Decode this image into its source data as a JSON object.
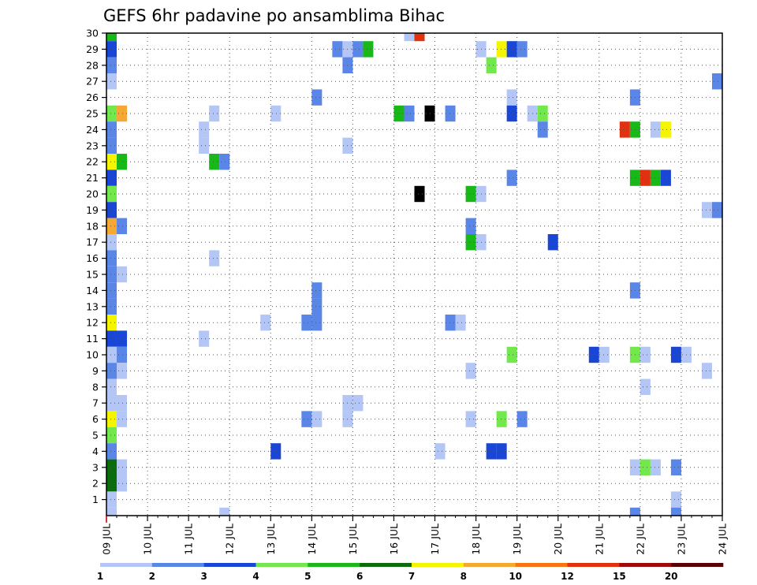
{
  "chart_data": {
    "type": "heatmap",
    "title": "GEFS 6hr padavine po ansamblima Bihac",
    "x_tick_labels": [
      "09 JUL",
      "10 JUL",
      "11 JUL",
      "12 JUL",
      "13 JUL",
      "14 JUL",
      "15 JUL",
      "16 JUL",
      "17 JUL",
      "18 JUL",
      "19 JUL",
      "20 JUL",
      "21 JUL",
      "22 JUL",
      "23 JUL",
      "24 JUL"
    ],
    "y_tick_labels": [
      "1",
      "2",
      "3",
      "4",
      "5",
      "6",
      "7",
      "8",
      "9",
      "10",
      "11",
      "12",
      "13",
      "14",
      "15",
      "16",
      "17",
      "18",
      "19",
      "20",
      "21",
      "22",
      "23",
      "24",
      "25",
      "26",
      "27",
      "28",
      "29",
      "30"
    ],
    "xlim": [
      0,
      15
    ],
    "ylim": [
      0,
      30
    ],
    "grid": true,
    "colorbar": {
      "placement": "bottom",
      "labels": [
        "1",
        "2",
        "3",
        "4",
        "5",
        "6",
        "7",
        "8",
        "10",
        "12",
        "15",
        "20"
      ],
      "colors": [
        "#b3c6f5",
        "#5a86e8",
        "#1a46d6",
        "#72e84c",
        "#18b818",
        "#0c6b0c",
        "#f5f500",
        "#f5a833",
        "#f57514",
        "#e0320f",
        "#9c0c0c",
        "#5a0000"
      ]
    },
    "cells": [
      {
        "t": 0.125,
        "m": 30,
        "v": 5
      },
      {
        "t": 0.125,
        "m": 29,
        "v": 3
      },
      {
        "t": 0.125,
        "m": 28,
        "v": 2
      },
      {
        "t": 0.125,
        "m": 27,
        "v": 1
      },
      {
        "t": 0.125,
        "m": 25,
        "v": 4
      },
      {
        "t": 0.375,
        "m": 25,
        "v": 8
      },
      {
        "t": 0.125,
        "m": 24,
        "v": 2
      },
      {
        "t": 0.125,
        "m": 23,
        "v": 2
      },
      {
        "t": 0.125,
        "m": 22,
        "v": 7
      },
      {
        "t": 0.375,
        "m": 22,
        "v": 5
      },
      {
        "t": 0.125,
        "m": 21,
        "v": 3
      },
      {
        "t": 0.125,
        "m": 20,
        "v": 4
      },
      {
        "t": 0.125,
        "m": 19,
        "v": 3
      },
      {
        "t": 0.125,
        "m": 18,
        "v": 8
      },
      {
        "t": 0.375,
        "m": 18,
        "v": 2
      },
      {
        "t": 0.125,
        "m": 17,
        "v": 1
      },
      {
        "t": 0.125,
        "m": 16,
        "v": 2
      },
      {
        "t": 0.125,
        "m": 15,
        "v": 2
      },
      {
        "t": 0.375,
        "m": 15,
        "v": 1
      },
      {
        "t": 0.125,
        "m": 14,
        "v": 2
      },
      {
        "t": 0.125,
        "m": 13,
        "v": 2
      },
      {
        "t": 0.125,
        "m": 12,
        "v": 7
      },
      {
        "t": 0.125,
        "m": 11,
        "v": 3
      },
      {
        "t": 0.375,
        "m": 11,
        "v": 3
      },
      {
        "t": 0.125,
        "m": 10,
        "v": 1
      },
      {
        "t": 0.375,
        "m": 10,
        "v": 2
      },
      {
        "t": 0.125,
        "m": 9,
        "v": 2
      },
      {
        "t": 0.375,
        "m": 9,
        "v": 1
      },
      {
        "t": 0.125,
        "m": 8,
        "v": 1
      },
      {
        "t": 0.125,
        "m": 7,
        "v": 1
      },
      {
        "t": 0.375,
        "m": 7,
        "v": 1
      },
      {
        "t": 0.125,
        "m": 6,
        "v": 7
      },
      {
        "t": 0.375,
        "m": 6,
        "v": 1
      },
      {
        "t": 0.125,
        "m": 5,
        "v": 4
      },
      {
        "t": 0.125,
        "m": 4,
        "v": 2
      },
      {
        "t": 0.125,
        "m": 3,
        "v": 6
      },
      {
        "t": 0.375,
        "m": 3,
        "v": 1
      },
      {
        "t": 0.125,
        "m": 2,
        "v": 6
      },
      {
        "t": 0.375,
        "m": 2,
        "v": 1
      },
      {
        "t": 0.125,
        "m": 1,
        "v": 1
      },
      {
        "t": 0.125,
        "m": 0,
        "v": 1
      },
      {
        "t": 2.625,
        "m": 25,
        "v": 1
      },
      {
        "t": 2.375,
        "m": 24,
        "v": 1
      },
      {
        "t": 2.375,
        "m": 23,
        "v": 1
      },
      {
        "t": 2.625,
        "m": 22,
        "v": 5
      },
      {
        "t": 2.875,
        "m": 22,
        "v": 2
      },
      {
        "t": 2.625,
        "m": 16,
        "v": 1
      },
      {
        "t": 2.375,
        "m": 11,
        "v": 1
      },
      {
        "t": 2.875,
        "m": 0,
        "v": 1
      },
      {
        "t": 4.125,
        "m": 25,
        "v": 1
      },
      {
        "t": 3.875,
        "m": 12,
        "v": 1
      },
      {
        "t": 4.125,
        "m": 4,
        "v": 3
      },
      {
        "t": 5.125,
        "m": 26,
        "v": 2
      },
      {
        "t": 5.125,
        "m": 14,
        "v": 2
      },
      {
        "t": 5.125,
        "m": 13,
        "v": 2
      },
      {
        "t": 4.875,
        "m": 12,
        "v": 2
      },
      {
        "t": 5.125,
        "m": 12,
        "v": 2
      },
      {
        "t": 4.875,
        "m": 6,
        "v": 2
      },
      {
        "t": 5.125,
        "m": 6,
        "v": 1
      },
      {
        "t": 5.625,
        "m": 29,
        "v": 2
      },
      {
        "t": 5.875,
        "m": 29,
        "v": 1
      },
      {
        "t": 6.125,
        "m": 29,
        "v": 2
      },
      {
        "t": 6.375,
        "m": 29,
        "v": 5
      },
      {
        "t": 5.875,
        "m": 28,
        "v": 2
      },
      {
        "t": 5.875,
        "m": 23,
        "v": 1
      },
      {
        "t": 5.875,
        "m": 7,
        "v": 1
      },
      {
        "t": 6.125,
        "m": 7,
        "v": 1
      },
      {
        "t": 5.875,
        "m": 6,
        "v": 1
      },
      {
        "t": 7.375,
        "m": 30,
        "v": 1
      },
      {
        "t": 7.625,
        "m": 30,
        "v": 10
      },
      {
        "t": 7.125,
        "m": 25,
        "v": 5
      },
      {
        "t": 7.375,
        "m": 25,
        "v": 2
      },
      {
        "t": 7.875,
        "m": 25,
        "v": 15
      },
      {
        "t": 7.625,
        "m": 20,
        "v": 15
      },
      {
        "t": 8.375,
        "m": 25,
        "v": 2
      },
      {
        "t": 8.375,
        "m": 12,
        "v": 2
      },
      {
        "t": 8.625,
        "m": 12,
        "v": 1
      },
      {
        "t": 8.125,
        "m": 4,
        "v": 1
      },
      {
        "t": 9.125,
        "m": 29,
        "v": 1
      },
      {
        "t": 9.625,
        "m": 29,
        "v": 7
      },
      {
        "t": 9.875,
        "m": 29,
        "v": 3
      },
      {
        "t": 10.125,
        "m": 29,
        "v": 2
      },
      {
        "t": 9.375,
        "m": 28,
        "v": 4
      },
      {
        "t": 9.875,
        "m": 26,
        "v": 1
      },
      {
        "t": 9.875,
        "m": 25,
        "v": 3
      },
      {
        "t": 8.875,
        "m": 20,
        "v": 5
      },
      {
        "t": 9.125,
        "m": 20,
        "v": 1
      },
      {
        "t": 8.875,
        "m": 18,
        "v": 2
      },
      {
        "t": 8.875,
        "m": 17,
        "v": 5
      },
      {
        "t": 9.125,
        "m": 17,
        "v": 1
      },
      {
        "t": 9.875,
        "m": 21,
        "v": 2
      },
      {
        "t": 9.875,
        "m": 10,
        "v": 4
      },
      {
        "t": 8.875,
        "m": 9,
        "v": 1
      },
      {
        "t": 8.875,
        "m": 6,
        "v": 1
      },
      {
        "t": 9.625,
        "m": 6,
        "v": 4
      },
      {
        "t": 10.125,
        "m": 6,
        "v": 2
      },
      {
        "t": 9.375,
        "m": 4,
        "v": 3
      },
      {
        "t": 9.625,
        "m": 4,
        "v": 3
      },
      {
        "t": 10.375,
        "m": 25,
        "v": 1
      },
      {
        "t": 10.625,
        "m": 25,
        "v": 4
      },
      {
        "t": 10.625,
        "m": 24,
        "v": 2
      },
      {
        "t": 10.875,
        "m": 17,
        "v": 3
      },
      {
        "t": 11.875,
        "m": 10,
        "v": 3
      },
      {
        "t": 12.125,
        "m": 10,
        "v": 1
      },
      {
        "t": 12.875,
        "m": 26,
        "v": 2
      },
      {
        "t": 12.625,
        "m": 24,
        "v": 10
      },
      {
        "t": 12.875,
        "m": 24,
        "v": 5
      },
      {
        "t": 13.375,
        "m": 24,
        "v": 1
      },
      {
        "t": 13.625,
        "m": 24,
        "v": 7
      },
      {
        "t": 12.875,
        "m": 21,
        "v": 5
      },
      {
        "t": 13.125,
        "m": 21,
        "v": 10
      },
      {
        "t": 13.375,
        "m": 21,
        "v": 5
      },
      {
        "t": 13.625,
        "m": 21,
        "v": 3
      },
      {
        "t": 12.875,
        "m": 14,
        "v": 2
      },
      {
        "t": 12.875,
        "m": 10,
        "v": 4
      },
      {
        "t": 13.125,
        "m": 10,
        "v": 1
      },
      {
        "t": 13.125,
        "m": 8,
        "v": 1
      },
      {
        "t": 12.875,
        "m": 3,
        "v": 1
      },
      {
        "t": 13.125,
        "m": 3,
        "v": 4
      },
      {
        "t": 13.375,
        "m": 3,
        "v": 1
      },
      {
        "t": 12.875,
        "m": 0,
        "v": 2
      },
      {
        "t": 14.875,
        "m": 27,
        "v": 2
      },
      {
        "t": 14.625,
        "m": 19,
        "v": 1
      },
      {
        "t": 14.875,
        "m": 19,
        "v": 2
      },
      {
        "t": 13.875,
        "m": 10,
        "v": 3
      },
      {
        "t": 14.125,
        "m": 10,
        "v": 1
      },
      {
        "t": 14.625,
        "m": 9,
        "v": 1
      },
      {
        "t": 13.875,
        "m": 3,
        "v": 2
      },
      {
        "t": 13.875,
        "m": 1,
        "v": 1
      },
      {
        "t": 13.875,
        "m": 0,
        "v": 2
      }
    ]
  }
}
